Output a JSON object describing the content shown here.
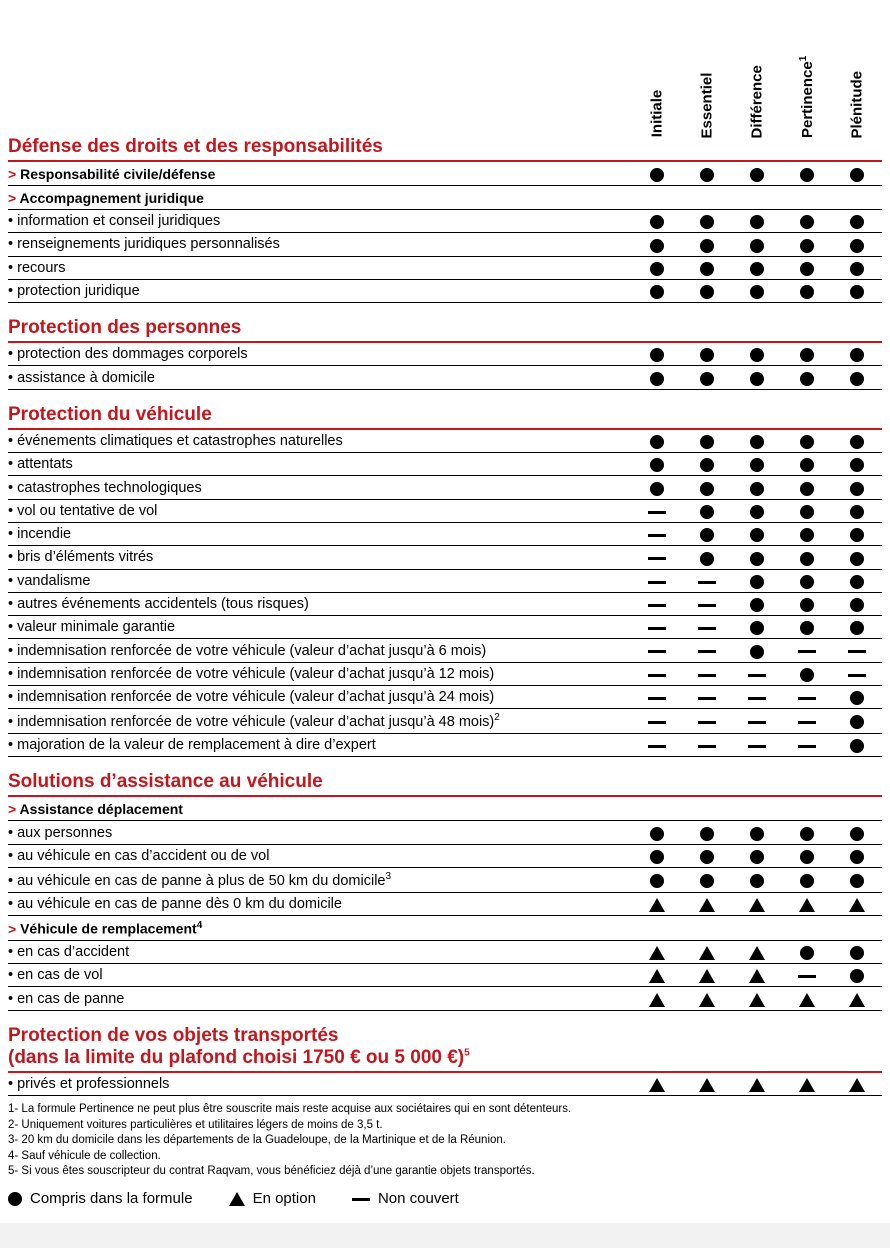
{
  "colors": {
    "accent": "#c4161c",
    "text": "#000000",
    "background": "#ffffff"
  },
  "columns": [
    "Initiale",
    "Essentiel",
    "Différence",
    "Pertinence",
    "Plénitude"
  ],
  "column_super": [
    "",
    "",
    "",
    "1",
    ""
  ],
  "marks": {
    "included": "dot",
    "option": "tri",
    "not_covered": "dash"
  },
  "sections": [
    {
      "title": "Défense des droits et des responsabilités",
      "rows": [
        {
          "type": "sub",
          "label": "Responsabilité civile/défense",
          "vals": [
            "dot",
            "dot",
            "dot",
            "dot",
            "dot"
          ]
        },
        {
          "type": "sub",
          "label": "Accompagnement juridique",
          "vals": [
            null,
            null,
            null,
            null,
            null
          ]
        },
        {
          "type": "item",
          "label": "information et conseil juridiques",
          "vals": [
            "dot",
            "dot",
            "dot",
            "dot",
            "dot"
          ]
        },
        {
          "type": "item",
          "label": "renseignements juridiques personnalisés",
          "vals": [
            "dot",
            "dot",
            "dot",
            "dot",
            "dot"
          ]
        },
        {
          "type": "item",
          "label": "recours",
          "vals": [
            "dot",
            "dot",
            "dot",
            "dot",
            "dot"
          ]
        },
        {
          "type": "item",
          "label": "protection juridique",
          "vals": [
            "dot",
            "dot",
            "dot",
            "dot",
            "dot"
          ]
        }
      ]
    },
    {
      "title": "Protection des personnes",
      "rows": [
        {
          "type": "item",
          "label": "protection des dommages corporels",
          "vals": [
            "dot",
            "dot",
            "dot",
            "dot",
            "dot"
          ]
        },
        {
          "type": "item",
          "label": "assistance à domicile",
          "vals": [
            "dot",
            "dot",
            "dot",
            "dot",
            "dot"
          ]
        }
      ]
    },
    {
      "title": "Protection du véhicule",
      "rows": [
        {
          "type": "item",
          "label": "événements climatiques et catastrophes naturelles",
          "vals": [
            "dot",
            "dot",
            "dot",
            "dot",
            "dot"
          ]
        },
        {
          "type": "item",
          "label": "attentats",
          "vals": [
            "dot",
            "dot",
            "dot",
            "dot",
            "dot"
          ]
        },
        {
          "type": "item",
          "label": "catastrophes technologiques",
          "vals": [
            "dot",
            "dot",
            "dot",
            "dot",
            "dot"
          ]
        },
        {
          "type": "item",
          "label": "vol ou tentative de vol",
          "vals": [
            "dash",
            "dot",
            "dot",
            "dot",
            "dot"
          ]
        },
        {
          "type": "item",
          "label": "incendie",
          "vals": [
            "dash",
            "dot",
            "dot",
            "dot",
            "dot"
          ]
        },
        {
          "type": "item",
          "label": "bris d’éléments vitrés",
          "vals": [
            "dash",
            "dot",
            "dot",
            "dot",
            "dot"
          ]
        },
        {
          "type": "item",
          "label": "vandalisme",
          "vals": [
            "dash",
            "dash",
            "dot",
            "dot",
            "dot"
          ]
        },
        {
          "type": "item",
          "label": "autres événements accidentels (tous risques)",
          "vals": [
            "dash",
            "dash",
            "dot",
            "dot",
            "dot"
          ]
        },
        {
          "type": "item",
          "label": "valeur minimale garantie",
          "vals": [
            "dash",
            "dash",
            "dot",
            "dot",
            "dot"
          ]
        },
        {
          "type": "item",
          "label": "indemnisation renforcée de votre véhicule (valeur d’achat jusqu’à 6 mois)",
          "vals": [
            "dash",
            "dash",
            "dot",
            "dash",
            "dash"
          ]
        },
        {
          "type": "item",
          "label": "indemnisation renforcée de votre véhicule (valeur d’achat jusqu’à 12 mois)",
          "vals": [
            "dash",
            "dash",
            "dash",
            "dot",
            "dash"
          ]
        },
        {
          "type": "item",
          "label": "indemnisation renforcée de votre véhicule (valeur d’achat jusqu’à 24 mois)",
          "vals": [
            "dash",
            "dash",
            "dash",
            "dash",
            "dot"
          ]
        },
        {
          "type": "item",
          "label": "indemnisation renforcée de votre véhicule (valeur d’achat jusqu’à 48 mois)",
          "sup": "2",
          "vals": [
            "dash",
            "dash",
            "dash",
            "dash",
            "dot"
          ]
        },
        {
          "type": "item",
          "label": "majoration de la valeur de remplacement à dire d’expert",
          "vals": [
            "dash",
            "dash",
            "dash",
            "dash",
            "dot"
          ]
        }
      ]
    },
    {
      "title": "Solutions d’assistance au véhicule",
      "rows": [
        {
          "type": "sub",
          "label": "Assistance déplacement",
          "vals": [
            null,
            null,
            null,
            null,
            null
          ]
        },
        {
          "type": "item",
          "label": "aux personnes",
          "vals": [
            "dot",
            "dot",
            "dot",
            "dot",
            "dot"
          ]
        },
        {
          "type": "item",
          "label": "au véhicule en cas d’accident ou de vol",
          "vals": [
            "dot",
            "dot",
            "dot",
            "dot",
            "dot"
          ]
        },
        {
          "type": "item",
          "label": "au véhicule en cas de panne à plus de 50 km du domicile",
          "sup": "3",
          "vals": [
            "dot",
            "dot",
            "dot",
            "dot",
            "dot"
          ]
        },
        {
          "type": "item",
          "label": "au véhicule en cas de panne dès 0 km du domicile",
          "vals": [
            "tri",
            "tri",
            "tri",
            "tri",
            "tri"
          ]
        },
        {
          "type": "sub",
          "label": "Véhicule de remplacement",
          "sup": "4",
          "vals": [
            null,
            null,
            null,
            null,
            null
          ]
        },
        {
          "type": "item",
          "label": "en cas d’accident",
          "vals": [
            "tri",
            "tri",
            "tri",
            "dot",
            "dot"
          ]
        },
        {
          "type": "item",
          "label": "en cas de vol",
          "vals": [
            "tri",
            "tri",
            "tri",
            "dash",
            "dot"
          ]
        },
        {
          "type": "item",
          "label": "en cas de panne",
          "vals": [
            "tri",
            "tri",
            "tri",
            "tri",
            "tri"
          ]
        }
      ]
    },
    {
      "title": "Protection de vos objets transportés\n(dans la limite du plafond choisi 1750 € ou 5 000 €)",
      "title_sup": "5",
      "rows": [
        {
          "type": "item",
          "label": "privés et professionnels",
          "vals": [
            "tri",
            "tri",
            "tri",
            "tri",
            "tri"
          ]
        }
      ]
    }
  ],
  "footnotes": [
    "1- La formule Pertinence ne peut plus être souscrite mais reste acquise aux sociétaires qui en sont détenteurs.",
    "2- Uniquement voitures particulières et utilitaires légers de moins de 3,5 t.",
    "3- 20 km du domicile dans les départements de la Guadeloupe, de la Martinique et de la Réunion.",
    "4- Sauf véhicule de collection.",
    "5- Si vous êtes souscripteur du contrat Raqvam, vous bénéficiez déjà d’une garantie objets transportés."
  ],
  "legend": [
    {
      "mark": "dot",
      "text": "Compris dans la formule"
    },
    {
      "mark": "tri",
      "text": "En option"
    },
    {
      "mark": "dash",
      "text": "Non couvert"
    }
  ]
}
